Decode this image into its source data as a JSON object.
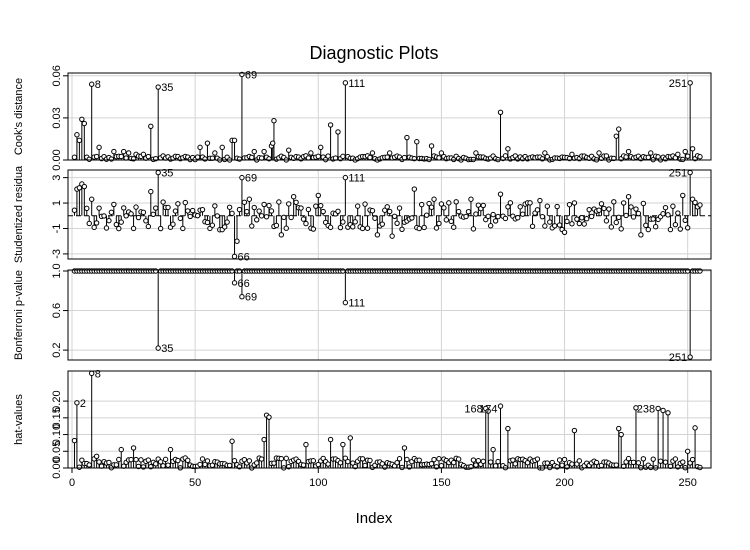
{
  "chart_data": {
    "type": "scatter",
    "title": "Diagnostic Plots",
    "xlabel": "Index",
    "xlim": [
      0,
      255
    ],
    "xticks": [
      0,
      50,
      100,
      150,
      200,
      250
    ],
    "n": 255,
    "panels": [
      {
        "id": "cooks",
        "ylabel": "Cook's distance",
        "ylim": [
          0,
          0.062
        ],
        "yticks": [
          0.0,
          0.03,
          0.06
        ],
        "ytick_labels": [
          "0.00",
          "0.03",
          "0.06"
        ],
        "baseline": 0,
        "base_amp": 0.003,
        "highlight": {
          "2": 0.018,
          "3": 0.014,
          "4": 0.029,
          "5": 0.026,
          "8": 0.054,
          "11": 0.009,
          "17": 0.006,
          "21": 0.006,
          "23": 0.005,
          "26": 0.004,
          "29": 0.004,
          "32": 0.024,
          "35": 0.052,
          "52": 0.009,
          "55": 0.012,
          "58": 0.005,
          "61": 0.009,
          "65": 0.014,
          "66": 0.014,
          "69": 0.061,
          "74": 0.006,
          "78": 0.006,
          "81": 0.01,
          "81.5": 0.012,
          "82": 0.028,
          "88": 0.007,
          "97": 0.005,
          "101": 0.009,
          "105": 0.025,
          "108": 0.02,
          "111": 0.055,
          "122": 0.005,
          "129": 0.005,
          "136": 0.016,
          "140": 0.013,
          "146": 0.01,
          "150": 0.005,
          "164": 0.005,
          "174": 0.034,
          "177": 0.008,
          "192": 0.005,
          "203": 0.004,
          "214": 0.005,
          "221": 0.017,
          "222": 0.022,
          "226": 0.006,
          "235": 0.005,
          "246": 0.004,
          "249": 0.006,
          "251": 0.055,
          "252": 0.008,
          "254": 0.003
        },
        "point_labels": [
          {
            "x": 8,
            "y": 0.054,
            "text": "8",
            "side": "right"
          },
          {
            "x": 35,
            "y": 0.052,
            "text": "35",
            "side": "right"
          },
          {
            "x": 69,
            "y": 0.061,
            "text": "69",
            "side": "right"
          },
          {
            "x": 111,
            "y": 0.055,
            "text": "111",
            "side": "right"
          },
          {
            "x": 251,
            "y": 0.055,
            "text": "251",
            "side": "left"
          }
        ]
      },
      {
        "id": "student",
        "ylabel": "Studentized residua",
        "ylim": [
          -3.4,
          3.6
        ],
        "yticks": [
          -3,
          -1,
          1,
          3
        ],
        "ytick_labels": [
          "-3",
          "-1",
          "1",
          "3"
        ],
        "baseline": 0,
        "dashed_zero": true,
        "base_amp": 1.1,
        "highlight": {
          "2": 2.1,
          "3": 2.2,
          "4": 2.5,
          "5": 2.3,
          "8": 1.3,
          "11": 0.6,
          "20": -0.5,
          "25": -1.0,
          "32": 1.9,
          "35": 3.4,
          "40": -0.9,
          "45": -1.0,
          "60": -1.1,
          "63": -0.5,
          "66": -3.2,
          "67": -2.0,
          "69": 3.0,
          "72": 1.3,
          "80": 0.8,
          "85": -1.5,
          "90": 1.5,
          "100": 1.6,
          "111": 3.0,
          "118": -1.0,
          "124": -1.5,
          "130": -1.6,
          "139": 2.1,
          "147": 1.3,
          "156": 1.1,
          "162": 1.3,
          "174": 1.7,
          "190": 1.2,
          "200": -1.3,
          "220": 1.1,
          "226": 1.5,
          "231": -1.5,
          "245": -0.7,
          "248": 1.6,
          "251": 3.4,
          "252": 1.3,
          "254": 0.7
        },
        "point_labels": [
          {
            "x": 35,
            "y": 3.4,
            "text": "35",
            "side": "right"
          },
          {
            "x": 66,
            "y": -3.2,
            "text": "66",
            "side": "right"
          },
          {
            "x": 69,
            "y": 3.0,
            "text": "69",
            "side": "right"
          },
          {
            "x": 111,
            "y": 3.0,
            "text": "111",
            "side": "right"
          },
          {
            "x": 251,
            "y": 3.4,
            "text": "251",
            "side": "left"
          }
        ]
      },
      {
        "id": "bonferroni",
        "ylabel": "Bonferroni p-value",
        "ylim": [
          0.1,
          1.01
        ],
        "yticks": [
          0.2,
          0.6,
          1.0
        ],
        "ytick_labels": [
          "0.2",
          "0.6",
          "1.0"
        ],
        "baseline": 1.0,
        "base_amp": 0,
        "highlight": {
          "35": 0.22,
          "66": 0.88,
          "69": 0.74,
          "111": 0.68,
          "251": 0.13
        },
        "point_labels": [
          {
            "x": 35,
            "y": 0.22,
            "text": "35",
            "side": "right"
          },
          {
            "x": 66,
            "y": 0.88,
            "text": "66",
            "side": "right"
          },
          {
            "x": 69,
            "y": 0.74,
            "text": "69",
            "side": "right"
          },
          {
            "x": 111,
            "y": 0.68,
            "text": "111",
            "side": "right"
          },
          {
            "x": 251,
            "y": 0.13,
            "text": "251",
            "side": "left"
          }
        ]
      },
      {
        "id": "hat",
        "ylabel": "hat-values",
        "ylim": [
          0,
          0.29
        ],
        "yticks": [
          0.0,
          0.05,
          0.1,
          0.15,
          0.2
        ],
        "ytick_labels": [
          "0.00",
          "0.05",
          "0.10",
          "0.15",
          "0.20"
        ],
        "baseline": 0,
        "base_amp": 0.03,
        "highlight": {
          "1": 0.082,
          "2": 0.195,
          "8": 0.283,
          "10": 0.035,
          "20": 0.055,
          "25": 0.06,
          "40": 0.055,
          "65": 0.08,
          "78": 0.085,
          "79": 0.158,
          "80": 0.152,
          "95": 0.07,
          "105": 0.085,
          "110": 0.07,
          "113": 0.09,
          "135": 0.06,
          "168": 0.178,
          "169": 0.17,
          "171": 0.055,
          "174": 0.185,
          "177": 0.118,
          "204": 0.112,
          "222": 0.118,
          "223": 0.1,
          "229": 0.18,
          "238": 0.178,
          "240": 0.172,
          "242": 0.165,
          "250": 0.05,
          "253": 0.12
        },
        "point_labels": [
          {
            "x": 2,
            "y": 0.195,
            "text": "2",
            "side": "right"
          },
          {
            "x": 8,
            "y": 0.283,
            "text": "8",
            "side": "right"
          },
          {
            "x": 168,
            "y": 0.178,
            "text": "168",
            "side": "left"
          },
          {
            "x": 174,
            "y": 0.178,
            "text": "174",
            "side": "left"
          },
          {
            "x": 238,
            "y": 0.178,
            "text": "238",
            "side": "left"
          }
        ]
      }
    ]
  }
}
